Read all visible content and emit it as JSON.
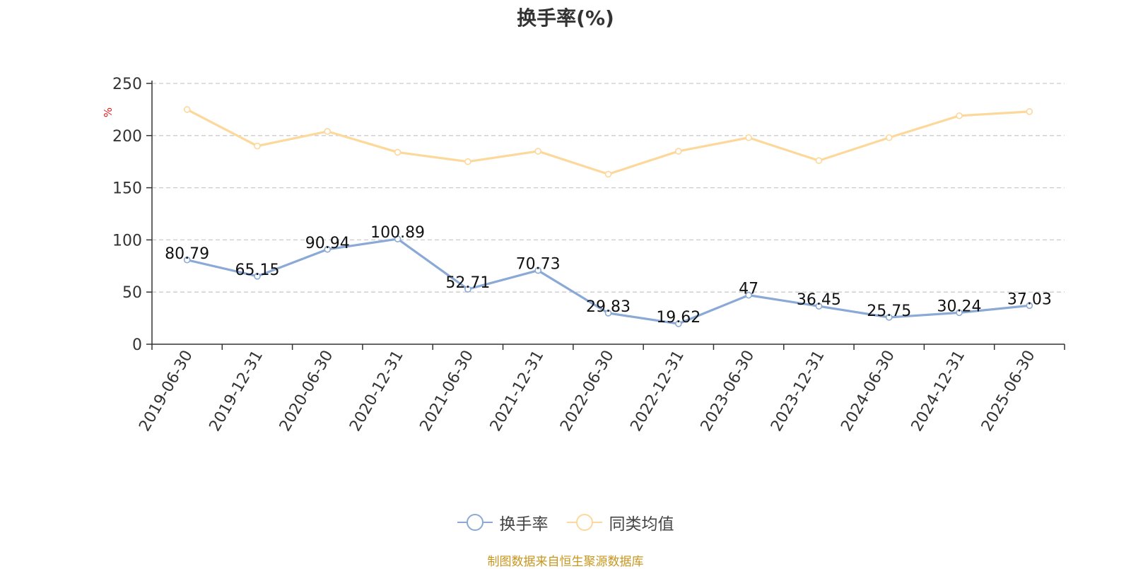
{
  "chart_data": {
    "type": "line",
    "title": "换手率(%)",
    "ylabel": "%",
    "xlabel": "",
    "ylim": [
      0,
      250
    ],
    "yticks": [
      0,
      50,
      100,
      150,
      200,
      250
    ],
    "grid": true,
    "legend_position": "bottom-center",
    "categories": [
      "2019-06-30",
      "2019-12-31",
      "2020-06-30",
      "2020-12-31",
      "2021-06-30",
      "2021-12-31",
      "2022-06-30",
      "2022-12-31",
      "2023-06-30",
      "2023-12-31",
      "2024-06-30",
      "2024-12-31",
      "2025-06-30"
    ],
    "series": [
      {
        "name": "换手率",
        "color": "#8aa9d6",
        "show_labels": true,
        "values": [
          80.79,
          65.15,
          90.94,
          100.89,
          52.71,
          70.73,
          29.83,
          19.62,
          47,
          36.45,
          25.75,
          30.24,
          37.03
        ]
      },
      {
        "name": "同类均值",
        "color": "#fcd89a",
        "show_labels": false,
        "values": [
          225,
          190,
          204,
          184,
          175,
          185,
          163,
          185,
          198,
          176,
          198,
          219,
          223
        ]
      }
    ]
  },
  "footer": {
    "source": "制图数据来自恒生聚源数据库"
  }
}
